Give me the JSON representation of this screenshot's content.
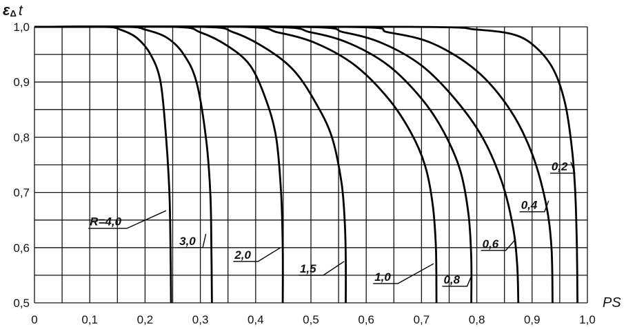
{
  "chart_data": {
    "type": "line",
    "xlabel": "PS",
    "ylabel": {
      "symbol": "ε",
      "subscript": "Δ",
      "suffix": "t"
    },
    "xlim": [
      0,
      1.0
    ],
    "ylim": [
      0.5,
      1.0
    ],
    "x_ticks": [
      "0",
      "0,1",
      "0,2",
      "0,3",
      "0,4",
      "0,5",
      "0,6",
      "0,7",
      "0,8",
      "0,9",
      "1,0"
    ],
    "y_ticks": [
      "0,5",
      "0,6",
      "0,7",
      "0,8",
      "0,9",
      "1,0"
    ],
    "grid": true,
    "series": [
      {
        "name": "R=4,0",
        "points": [
          [
            0.0,
            1.0
          ],
          [
            0.125,
            1.0
          ],
          [
            0.155,
            0.995
          ],
          [
            0.185,
            0.98
          ],
          [
            0.21,
            0.95
          ],
          [
            0.228,
            0.9
          ],
          [
            0.238,
            0.8
          ],
          [
            0.244,
            0.7
          ],
          [
            0.246,
            0.6
          ],
          [
            0.247,
            0.5
          ]
        ]
      },
      {
        "name": "3,0",
        "points": [
          [
            0.0,
            1.0
          ],
          [
            0.165,
            1.0
          ],
          [
            0.2,
            0.995
          ],
          [
            0.24,
            0.98
          ],
          [
            0.27,
            0.95
          ],
          [
            0.293,
            0.9
          ],
          [
            0.31,
            0.8
          ],
          [
            0.318,
            0.7
          ],
          [
            0.32,
            0.6
          ],
          [
            0.321,
            0.5
          ]
        ]
      },
      {
        "name": "2,0",
        "points": [
          [
            0.0,
            1.0
          ],
          [
            0.25,
            1.0
          ],
          [
            0.3,
            0.99
          ],
          [
            0.35,
            0.965
          ],
          [
            0.39,
            0.93
          ],
          [
            0.418,
            0.87
          ],
          [
            0.437,
            0.8
          ],
          [
            0.446,
            0.7
          ],
          [
            0.449,
            0.6
          ],
          [
            0.449,
            0.5
          ]
        ]
      },
      {
        "name": "1,5",
        "points": [
          [
            0.0,
            1.0
          ],
          [
            0.3,
            1.0
          ],
          [
            0.36,
            0.99
          ],
          [
            0.42,
            0.96
          ],
          [
            0.47,
            0.92
          ],
          [
            0.51,
            0.86
          ],
          [
            0.538,
            0.8
          ],
          [
            0.555,
            0.72
          ],
          [
            0.561,
            0.65
          ],
          [
            0.563,
            0.58
          ],
          [
            0.563,
            0.5
          ]
        ]
      },
      {
        "name": "1,0",
        "points": [
          [
            0.0,
            1.0
          ],
          [
            0.37,
            1.0
          ],
          [
            0.44,
            0.99
          ],
          [
            0.51,
            0.97
          ],
          [
            0.58,
            0.93
          ],
          [
            0.64,
            0.87
          ],
          [
            0.68,
            0.81
          ],
          [
            0.706,
            0.75
          ],
          [
            0.72,
            0.68
          ],
          [
            0.726,
            0.6
          ],
          [
            0.727,
            0.5
          ]
        ]
      },
      {
        "name": "0,8",
        "points": [
          [
            0.0,
            1.0
          ],
          [
            0.42,
            1.0
          ],
          [
            0.5,
            0.99
          ],
          [
            0.57,
            0.97
          ],
          [
            0.64,
            0.93
          ],
          [
            0.7,
            0.87
          ],
          [
            0.74,
            0.81
          ],
          [
            0.77,
            0.74
          ],
          [
            0.785,
            0.66
          ],
          [
            0.79,
            0.58
          ],
          [
            0.79,
            0.5
          ]
        ]
      },
      {
        "name": "0,6",
        "points": [
          [
            0.0,
            1.0
          ],
          [
            0.48,
            1.0
          ],
          [
            0.56,
            0.99
          ],
          [
            0.63,
            0.97
          ],
          [
            0.7,
            0.93
          ],
          [
            0.76,
            0.87
          ],
          [
            0.81,
            0.8
          ],
          [
            0.845,
            0.72
          ],
          [
            0.865,
            0.64
          ],
          [
            0.873,
            0.57
          ],
          [
            0.875,
            0.5
          ]
        ]
      },
      {
        "name": "0,4",
        "points": [
          [
            0.0,
            1.0
          ],
          [
            0.56,
            1.0
          ],
          [
            0.64,
            0.99
          ],
          [
            0.72,
            0.97
          ],
          [
            0.8,
            0.92
          ],
          [
            0.86,
            0.85
          ],
          [
            0.9,
            0.77
          ],
          [
            0.925,
            0.68
          ],
          [
            0.935,
            0.6
          ],
          [
            0.937,
            0.5
          ]
        ]
      },
      {
        "name": "0,2",
        "points": [
          [
            0.0,
            1.0
          ],
          [
            0.68,
            1.0
          ],
          [
            0.8,
            0.995
          ],
          [
            0.87,
            0.985
          ],
          [
            0.91,
            0.96
          ],
          [
            0.94,
            0.92
          ],
          [
            0.96,
            0.86
          ],
          [
            0.972,
            0.78
          ],
          [
            0.978,
            0.7
          ],
          [
            0.981,
            0.6
          ],
          [
            0.982,
            0.5
          ]
        ]
      }
    ],
    "curve_labels": [
      {
        "text": "R=4,0",
        "x": 0.1,
        "y": 0.64,
        "to": [
          0.238,
          0.667
        ]
      },
      {
        "text": "3,0",
        "x": 0.262,
        "y": 0.605,
        "to": [
          0.31,
          0.625
        ]
      },
      {
        "text": "2,0",
        "x": 0.362,
        "y": 0.58,
        "to": [
          0.445,
          0.6
        ]
      },
      {
        "text": "1,5",
        "x": 0.48,
        "y": 0.555,
        "to": [
          0.56,
          0.575
        ]
      },
      {
        "text": "1,0",
        "x": 0.615,
        "y": 0.54,
        "to": [
          0.722,
          0.571
        ]
      },
      {
        "text": "0,8",
        "x": 0.74,
        "y": 0.535,
        "to": [
          0.79,
          0.548
        ]
      },
      {
        "text": "0,6",
        "x": 0.81,
        "y": 0.6,
        "to": [
          0.87,
          0.615
        ]
      },
      {
        "text": "0,4",
        "x": 0.88,
        "y": 0.67,
        "to": [
          0.93,
          0.685
        ]
      },
      {
        "text": "0,2",
        "x": 0.935,
        "y": 0.74,
        "to": [
          0.97,
          0.755
        ]
      }
    ]
  }
}
